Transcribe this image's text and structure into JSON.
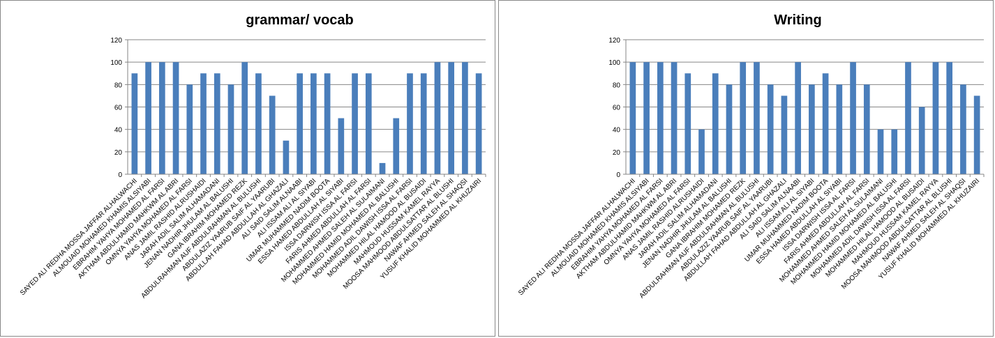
{
  "chart_data": [
    {
      "type": "bar",
      "title": "grammar/ vocab",
      "categories": [
        "SAYED ALI REDHA MOSSA JAFFAR ALHALWACHI",
        "ALMOUAID MOHAMED KHAMIS ALSIYABI",
        "EBRAHIM YAHYA MOHAMED AL FARSI",
        "AKTHAM ABDULHAMID MAHKWM AL ABRI",
        "OMNYA YAHYA MOHAMED AL FARSI",
        "ANAS JAMIL RASHID ALRUSHAIDI",
        "JARAH ADIL SALIM ALHAMADANI",
        "JENAN NADHIR JHULAM AL BALUSHI",
        "GANA IBRAHIM MOHAMED REZK",
        "ABDULRAHMAN AUF ABDULRAHMAN AL BULUSHI",
        "ABDULAZIZ YAARUB SAIF AL YAARUBI",
        "ABDULLAH FAHAD ABDULLAH AL GHAZALI",
        "ALI SAID SALIM ALNAABI",
        "ALI ISSAM ALI AL SIYABI",
        "UMAR MUHAMMED NADIM BOOTA",
        "ESSA HAMED ABDULLAH AL SIYABI",
        "ISSA DARWISH ISSA AL FARSI",
        "FARIS AHMED ABDULLAH AL FARSI",
        "MOHAMMED AHMED SALEH AL SULAIMANI",
        "MOHAMMED HAMID MOHAMED AL BALUSHI",
        "MOHAMMED ADIL DAWISH ISSA AL FARSI",
        "MOHAMMED HILAL HAMOOD AL BUSAIDI",
        "MAHMOUD HUSSAM KAMEL RAYYA",
        "MOOSA MAHMOOD ABDULSATTAR AL BLUSHI",
        "NAWAF AHMED SALEH AL SHAQSI",
        "YUSUF KHALID MOHAMMED AL KHUZAIRI"
      ],
      "values": [
        90,
        100,
        100,
        100,
        80,
        90,
        90,
        80,
        100,
        90,
        70,
        30,
        90,
        90,
        90,
        50,
        90,
        90,
        10,
        50,
        90,
        90,
        100,
        100,
        100,
        90
      ],
      "color": "#4a7ebb",
      "ylim": [
        0,
        120
      ],
      "yticks": [
        0,
        20,
        40,
        60,
        80,
        100,
        120
      ],
      "grid": true
    },
    {
      "type": "bar",
      "title": "Writing",
      "categories": [
        "SAYED ALI REDHA MOSSA JAFFAR ALHALWACHI",
        "ALMOUAID MOHAMED KHAMIS ALSIYABI",
        "EBRAHIM YAHYA MOHAMED AL FARSI",
        "AKTHAM ABDULHAMID MAHKWM AL ABRI",
        "OMNYA YAHYA MOHAMED AL FARSI",
        "ANAS JAMIL RASHID ALRUSHAIDI",
        "JARAH ADIL SALIM ALHAMADANI",
        "JENAN NADHIR JHULAM AL BALUSHI",
        "GANA IBRAHIM MOHAMED REZK",
        "ABDULRAHMAN AUF ABDULRAHMAN AL BULUSHI",
        "ABDULAZIZ YAARUB SAIF AL YAARUBI",
        "ABDULLAH FAHAD ABDULLAH AL GHAZALI",
        "ALI SAID SALIM ALNAABI",
        "ALI ISSAM ALI AL SIYABI",
        "UMAR MUHAMMED NADIM BOOTA",
        "ESSA HAMED ABDULLAH AL SIYABI",
        "ISSA DARWISH ISSA AL FARSI",
        "FARIS AHMED ABDULLAH AL FARSI",
        "MOHAMMED AHMED SALEH AL SULAIMANI",
        "MOHAMMED HAMID MOHAMED AL BALUSHI",
        "MOHAMMED ADIL DAWISH ISSA AL FARSI",
        "MOHAMMED HILAL HAMOOD AL BUSAIDI",
        "MAHMOUD HUSSAM KAMEL RAYYA",
        "MOOSA MAHMOOD ABDULSATTAR AL BLUSHI",
        "NAWAF AHMED SALEH AL SHAQSI",
        "YUSUF KHALID MOHAMMED AL KHUZAIRI"
      ],
      "values": [
        100,
        100,
        100,
        100,
        90,
        40,
        90,
        80,
        100,
        100,
        80,
        70,
        100,
        80,
        90,
        80,
        100,
        80,
        40,
        40,
        100,
        60,
        100,
        100,
        80,
        70
      ],
      "color": "#4a7ebb",
      "ylim": [
        0,
        120
      ],
      "yticks": [
        0,
        20,
        40,
        60,
        80,
        100,
        120
      ],
      "grid": true
    }
  ]
}
